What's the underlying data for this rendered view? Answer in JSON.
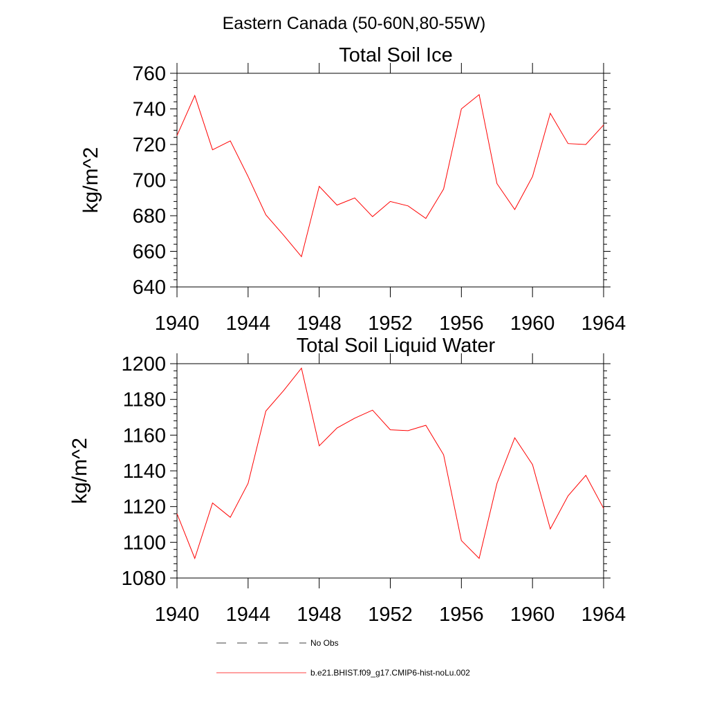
{
  "figure_title": "Eastern Canada (50-60N,80-55W)",
  "legend": {
    "obs_label": "No Obs",
    "model_label": "b.e21.BHIST.f09_g17.CMIP6-hist-noLu.002"
  },
  "colors": {
    "model": "#ff0000",
    "obs": "#000000",
    "axes": "#000000"
  },
  "chart_data": [
    {
      "type": "line",
      "title": "Total Soil Ice",
      "xlabel": "",
      "ylabel": "kg/m^2",
      "xlim": [
        1940,
        1964
      ],
      "ylim": [
        640,
        760
      ],
      "x_ticks": [
        1940,
        1944,
        1948,
        1952,
        1956,
        1960,
        1964
      ],
      "y_ticks": [
        640,
        660,
        680,
        700,
        720,
        740,
        760
      ],
      "grid": false,
      "series": [
        {
          "name": "b.e21.BHIST.f09_g17.CMIP6-hist-noLu.002",
          "color": "#ff0000",
          "x": [
            1940,
            1941,
            1942,
            1943,
            1944,
            1945,
            1946,
            1947,
            1948,
            1949,
            1950,
            1951,
            1952,
            1953,
            1954,
            1955,
            1956,
            1957,
            1958,
            1959,
            1960,
            1961,
            1962,
            1963,
            1964
          ],
          "y": [
            725,
            747.5,
            717,
            722,
            702,
            680.5,
            669,
            657,
            696.5,
            686,
            690,
            679.5,
            688,
            685.5,
            678.5,
            695,
            740,
            748,
            698,
            683.5,
            702,
            737.5,
            720.5,
            720,
            731
          ]
        }
      ]
    },
    {
      "type": "line",
      "title": "Total Soil Liquid Water",
      "xlabel": "",
      "ylabel": "kg/m^2",
      "xlim": [
        1940,
        1964
      ],
      "ylim": [
        1080,
        1200
      ],
      "x_ticks": [
        1940,
        1944,
        1948,
        1952,
        1956,
        1960,
        1964
      ],
      "y_ticks": [
        1080,
        1100,
        1120,
        1140,
        1160,
        1180,
        1200
      ],
      "grid": false,
      "series": [
        {
          "name": "b.e21.BHIST.f09_g17.CMIP6-hist-noLu.002",
          "color": "#ff0000",
          "x": [
            1940,
            1941,
            1942,
            1943,
            1944,
            1945,
            1946,
            1947,
            1948,
            1949,
            1950,
            1951,
            1952,
            1953,
            1954,
            1955,
            1956,
            1957,
            1958,
            1959,
            1960,
            1961,
            1962,
            1963,
            1964
          ],
          "y": [
            1116,
            1091,
            1122,
            1114,
            1133,
            1173.5,
            1185,
            1197.5,
            1154,
            1164,
            1169.5,
            1174,
            1163,
            1162.5,
            1165.5,
            1149,
            1101,
            1091,
            1133,
            1158.5,
            1143.5,
            1107.5,
            1126,
            1137.5,
            1119
          ]
        }
      ]
    }
  ]
}
